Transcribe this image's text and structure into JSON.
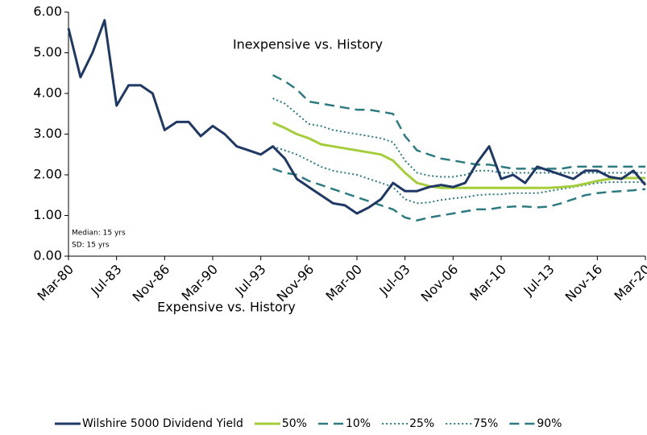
{
  "chart_data": {
    "type": "line",
    "categories": [
      "Mar-80",
      null,
      null,
      null,
      "Jul-83",
      null,
      null,
      null,
      "Nov-86",
      null,
      null,
      null,
      "Mar-90",
      null,
      null,
      null,
      "Jul-93",
      null,
      null,
      null,
      "Nov-96",
      null,
      null,
      null,
      "Mar-00",
      null,
      null,
      null,
      "Jul-03",
      null,
      null,
      null,
      "Nov-06",
      null,
      null,
      null,
      "Mar-10",
      null,
      null,
      null,
      "Jul-13",
      null,
      null,
      null,
      "Nov-16",
      null,
      null,
      null,
      "Mar-20"
    ],
    "series": [
      {
        "name": "Wilshire 5000 Dividend Yield",
        "color": "#1f3864",
        "dash": "solid",
        "width": 3,
        "values": [
          5.6,
          4.4,
          5.0,
          5.8,
          3.7,
          4.2,
          4.2,
          4.0,
          3.1,
          3.3,
          3.3,
          2.95,
          3.2,
          3.0,
          2.7,
          2.6,
          2.5,
          2.7,
          2.4,
          1.9,
          1.7,
          1.5,
          1.3,
          1.25,
          1.05,
          1.2,
          1.4,
          1.8,
          1.6,
          1.6,
          1.7,
          1.75,
          1.7,
          1.8,
          2.3,
          2.7,
          1.9,
          2.0,
          1.8,
          2.2,
          2.1,
          2.0,
          1.9,
          2.1,
          2.1,
          1.95,
          1.9,
          2.1,
          1.75
        ]
      },
      {
        "name": "50%",
        "color": "#a5cd39",
        "dash": "solid",
        "width": 3,
        "values": [
          null,
          null,
          null,
          null,
          null,
          null,
          null,
          null,
          null,
          null,
          null,
          null,
          null,
          null,
          null,
          null,
          null,
          3.28,
          3.15,
          3.0,
          2.9,
          2.75,
          2.7,
          2.65,
          2.6,
          2.55,
          2.5,
          2.35,
          2.05,
          1.8,
          1.72,
          1.68,
          1.68,
          1.68,
          1.68,
          1.68,
          1.68,
          1.68,
          1.68,
          1.68,
          1.68,
          1.7,
          1.72,
          1.78,
          1.85,
          1.9,
          1.92,
          1.92,
          1.92
        ]
      },
      {
        "name": "10%",
        "color": "#2e7b7f",
        "dash": "dashed",
        "width": 2.5,
        "values": [
          null,
          null,
          null,
          null,
          null,
          null,
          null,
          null,
          null,
          null,
          null,
          null,
          null,
          null,
          null,
          null,
          null,
          2.15,
          2.05,
          2.0,
          1.85,
          1.75,
          1.65,
          1.55,
          1.45,
          1.35,
          1.25,
          1.15,
          0.95,
          0.88,
          0.95,
          1.0,
          1.05,
          1.1,
          1.15,
          1.15,
          1.2,
          1.22,
          1.22,
          1.2,
          1.22,
          1.3,
          1.4,
          1.5,
          1.55,
          1.58,
          1.6,
          1.62,
          1.65
        ]
      },
      {
        "name": "25%",
        "color": "#2e7b7f",
        "dash": "dotted",
        "width": 2,
        "values": [
          null,
          null,
          null,
          null,
          null,
          null,
          null,
          null,
          null,
          null,
          null,
          null,
          null,
          null,
          null,
          null,
          null,
          2.7,
          2.6,
          2.5,
          2.35,
          2.2,
          2.1,
          2.05,
          2.0,
          1.9,
          1.8,
          1.7,
          1.4,
          1.3,
          1.32,
          1.38,
          1.42,
          1.45,
          1.5,
          1.52,
          1.52,
          1.55,
          1.55,
          1.55,
          1.6,
          1.65,
          1.7,
          1.75,
          1.8,
          1.82,
          1.82,
          1.82,
          1.82
        ]
      },
      {
        "name": "75%",
        "color": "#2e7b7f",
        "dash": "dotted",
        "width": 2,
        "values": [
          null,
          null,
          null,
          null,
          null,
          null,
          null,
          null,
          null,
          null,
          null,
          null,
          null,
          null,
          null,
          null,
          null,
          3.88,
          3.75,
          3.5,
          3.25,
          3.2,
          3.1,
          3.05,
          3.0,
          2.95,
          2.9,
          2.8,
          2.35,
          2.05,
          1.98,
          1.95,
          1.95,
          2.0,
          2.1,
          2.1,
          2.05,
          2.05,
          2.05,
          2.05,
          2.05,
          2.05,
          2.05,
          2.05,
          2.05,
          2.05,
          2.05,
          2.05,
          2.05
        ]
      },
      {
        "name": "90%",
        "color": "#2e7b7f",
        "dash": "dashed",
        "width": 2.5,
        "values": [
          null,
          null,
          null,
          null,
          null,
          null,
          null,
          null,
          null,
          null,
          null,
          null,
          null,
          null,
          null,
          null,
          null,
          4.45,
          4.3,
          4.1,
          3.8,
          3.75,
          3.7,
          3.65,
          3.6,
          3.6,
          3.55,
          3.5,
          2.95,
          2.6,
          2.5,
          2.4,
          2.35,
          2.3,
          2.25,
          2.25,
          2.2,
          2.15,
          2.15,
          2.15,
          2.15,
          2.15,
          2.2,
          2.2,
          2.2,
          2.2,
          2.2,
          2.2,
          2.2
        ]
      }
    ],
    "ylim": [
      0,
      6
    ],
    "yticks": [
      {
        "value": 0,
        "label": "0.00"
      },
      {
        "value": 1,
        "label": "1.00"
      },
      {
        "value": 2,
        "label": "2.00"
      },
      {
        "value": 3,
        "label": "3.00"
      },
      {
        "value": 4,
        "label": "4.00"
      },
      {
        "value": 5,
        "label": "5.00"
      },
      {
        "value": 6,
        "label": "6.00"
      }
    ],
    "annotations": [
      "Inexpensive vs. History",
      "Expensive vs. History",
      "Median: 15 yrs",
      "SD: 15 yrs"
    ],
    "legend": "bottom",
    "grid": false
  }
}
